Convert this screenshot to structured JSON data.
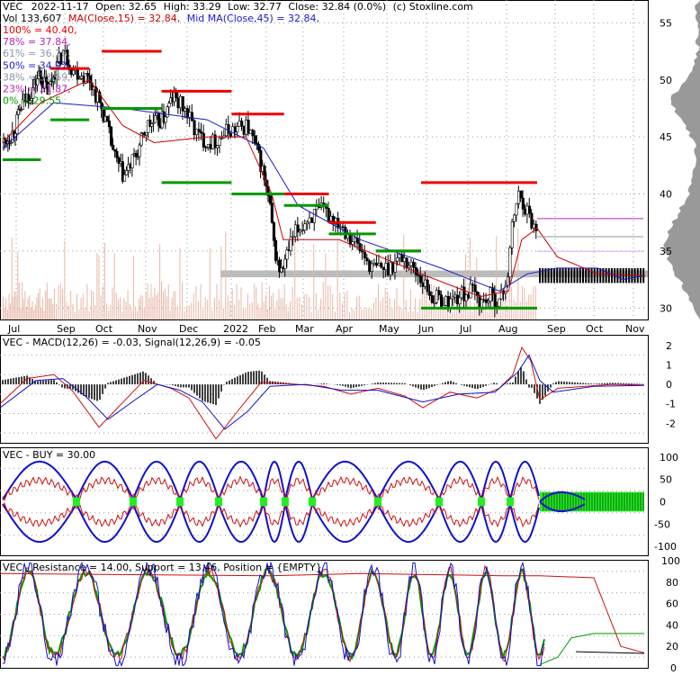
{
  "colors": {
    "price": "#000000",
    "ma_short": "#cc0000",
    "ma_mid": "#1a1acc",
    "resistance": "#ee0000",
    "support": "#009900",
    "fib_line": "#bb22bb",
    "band_blue": "#1111cc",
    "band_red": "#cc1111",
    "buy_green": "#22ee22",
    "volume": "#e8b8a8",
    "grid": "#999999",
    "gray_band": "#bbbbbb"
  },
  "main": {
    "line1": {
      "ticker": "VEC",
      "date": "2022-11-17",
      "open": "Open: 32.65",
      "high": "High: 33.29",
      "low": "Low: 32.77",
      "close": "Close: 32.84 (0.0%)",
      "source": "(c) Stoxline.com"
    },
    "line2": {
      "vol": "Vol 133,607",
      "ma": "MA(Close,15) = 32.84,",
      "mid": "Mid MA(Close,45) = 32.84,"
    },
    "fib_labels": [
      {
        "text": "100% = 40.40,",
        "color": "#ee0000"
      },
      {
        "text": "78% = 37.84,",
        "color": "#bb22bb"
      },
      {
        "text": "61% = 36.26,",
        "color": "#8899aa"
      },
      {
        "text": "50% = 34.97,",
        "color": "#1a1acc"
      },
      {
        "text": "38% = 33.69,",
        "color": "#8899aa"
      },
      {
        "text": "23% = 31.87,",
        "color": "#bb22bb"
      },
      {
        "text": "0% = 29.55",
        "color": "#009900"
      }
    ],
    "months": [
      "Jul",
      "Sep",
      "Oct",
      "Nov",
      "Dec",
      "2022",
      "Feb",
      "Mar",
      "Apr",
      "May",
      "Jun",
      "Jul",
      "Aug",
      "Sep",
      "Oct",
      "Nov"
    ]
  },
  "macd": {
    "label": "VEC - MACD(12,26) = -0.03, Signal(12,26,9) = -0.05"
  },
  "buy": {
    "label": "VEC - BUY = 30.00"
  },
  "resist": {
    "label": "VEC - Resistance = 14.00, Support = 13.46, Position = {EMPTY}"
  },
  "chart_data": [
    {
      "type": "candlestick",
      "title": "VEC 2022-11-17 Open: 32.65 High: 33.29 Low: 32.77 Close: 32.84 (0.0%)",
      "ylim": [
        29,
        57
      ],
      "yticks": [
        30,
        35,
        40,
        45,
        50,
        55
      ],
      "x_months": [
        "Jul",
        "Sep",
        "Oct",
        "Nov",
        "Dec",
        "2022",
        "Feb",
        "Mar",
        "Apr",
        "May",
        "Jun",
        "Jul",
        "Aug",
        "Sep",
        "Oct",
        "Nov"
      ],
      "close_path": [
        [
          0,
          44.5
        ],
        [
          8,
          45.5
        ],
        [
          15,
          48
        ],
        [
          22,
          49
        ],
        [
          28,
          50.5
        ],
        [
          35,
          49
        ],
        [
          45,
          52.5
        ],
        [
          50,
          51
        ],
        [
          60,
          50
        ],
        [
          68,
          47
        ],
        [
          75,
          43
        ],
        [
          80,
          41.5
        ],
        [
          88,
          43.5
        ],
        [
          95,
          46
        ],
        [
          105,
          46.5
        ],
        [
          112,
          48.5
        ],
        [
          118,
          47.5
        ],
        [
          125,
          45
        ],
        [
          132,
          44.5
        ],
        [
          140,
          45.5
        ],
        [
          150,
          46
        ],
        [
          158,
          42.5
        ],
        [
          163,
          39
        ],
        [
          166,
          35
        ],
        [
          170,
          33
        ],
        [
          178,
          36.5
        ],
        [
          185,
          38
        ],
        [
          192,
          38.5
        ],
        [
          200,
          37.5
        ],
        [
          208,
          35.5
        ],
        [
          215,
          33.5
        ],
        [
          222,
          33.5
        ],
        [
          230,
          34.5
        ],
        [
          238,
          33
        ],
        [
          245,
          31
        ],
        [
          252,
          30.5
        ],
        [
          258,
          31
        ],
        [
          265,
          31.5
        ],
        [
          270,
          30.5
        ],
        [
          275,
          31
        ],
        [
          280,
          30.5
        ],
        [
          284,
          33
        ],
        [
          287,
          38
        ],
        [
          290,
          40
        ],
        [
          293,
          39
        ],
        [
          297,
          37.5
        ],
        [
          300,
          36.5
        ],
        [
          305,
          35.5
        ],
        [
          312,
          34.5
        ],
        [
          320,
          34.5
        ],
        [
          330,
          34
        ],
        [
          340,
          33.5
        ],
        [
          350,
          33
        ],
        [
          360,
          32.84
        ]
      ],
      "ma15_path": [
        [
          0,
          44.5
        ],
        [
          30,
          48
        ],
        [
          60,
          50
        ],
        [
          80,
          46
        ],
        [
          100,
          44.5
        ],
        [
          130,
          45
        ],
        [
          150,
          45
        ],
        [
          165,
          40
        ],
        [
          172,
          36
        ],
        [
          200,
          36
        ],
        [
          240,
          33
        ],
        [
          270,
          31
        ],
        [
          285,
          31.5
        ],
        [
          292,
          36
        ],
        [
          300,
          37
        ],
        [
          310,
          34.5
        ],
        [
          330,
          33
        ],
        [
          360,
          32.84
        ]
      ],
      "ma45_path": [
        [
          0,
          44
        ],
        [
          40,
          48
        ],
        [
          80,
          47.5
        ],
        [
          130,
          46.5
        ],
        [
          160,
          44
        ],
        [
          180,
          39
        ],
        [
          210,
          36
        ],
        [
          250,
          33.5
        ],
        [
          280,
          31.5
        ],
        [
          295,
          33
        ],
        [
          310,
          33.5
        ],
        [
          330,
          33.5
        ],
        [
          345,
          32.5
        ],
        [
          360,
          32.84
        ]
      ],
      "resistance_segments": [
        [
          25,
          40,
          51
        ],
        [
          45,
          70,
          52.5
        ],
        [
          70,
          95,
          49
        ],
        [
          95,
          115,
          47
        ],
        [
          115,
          130,
          40
        ],
        [
          130,
          145,
          37.5
        ],
        [
          145,
          160,
          35
        ],
        [
          160,
          200,
          41
        ]
      ],
      "support_segments": [
        [
          0,
          20,
          43
        ],
        [
          25,
          40,
          46.5
        ],
        [
          45,
          70,
          47.5
        ],
        [
          70,
          95,
          41
        ],
        [
          95,
          115,
          40
        ],
        [
          115,
          130,
          39
        ],
        [
          130,
          145,
          36.5
        ],
        [
          145,
          160,
          35
        ],
        [
          160,
          200,
          30
        ]
      ],
      "fib_levels": {
        "100%": 40.4,
        "78%": 37.84,
        "61%": 36.26,
        "50%": 34.97,
        "38%": 33.69,
        "23%": 31.87,
        "0%": 29.55
      }
    },
    {
      "type": "line",
      "title": "VEC - MACD(12,26) = -0.03, Signal(12,26,9) = -0.05",
      "ylim": [
        -3,
        2.5
      ],
      "yticks": [
        2,
        1,
        0,
        -1,
        -2
      ],
      "macd": -0.03,
      "signal": -0.05
    },
    {
      "type": "line",
      "title": "VEC - BUY = 30.00",
      "ylim": [
        -120,
        120
      ],
      "yticks": [
        100,
        50,
        0,
        -50,
        -100
      ],
      "buy": 30.0
    },
    {
      "type": "line",
      "title": "VEC - Resistance = 14.00, Support = 13.46, Position = {EMPTY}",
      "ylim": [
        0,
        100
      ],
      "yticks": [
        100,
        80,
        60,
        40,
        20,
        0
      ],
      "resistance": 14.0,
      "support": 13.46
    }
  ]
}
